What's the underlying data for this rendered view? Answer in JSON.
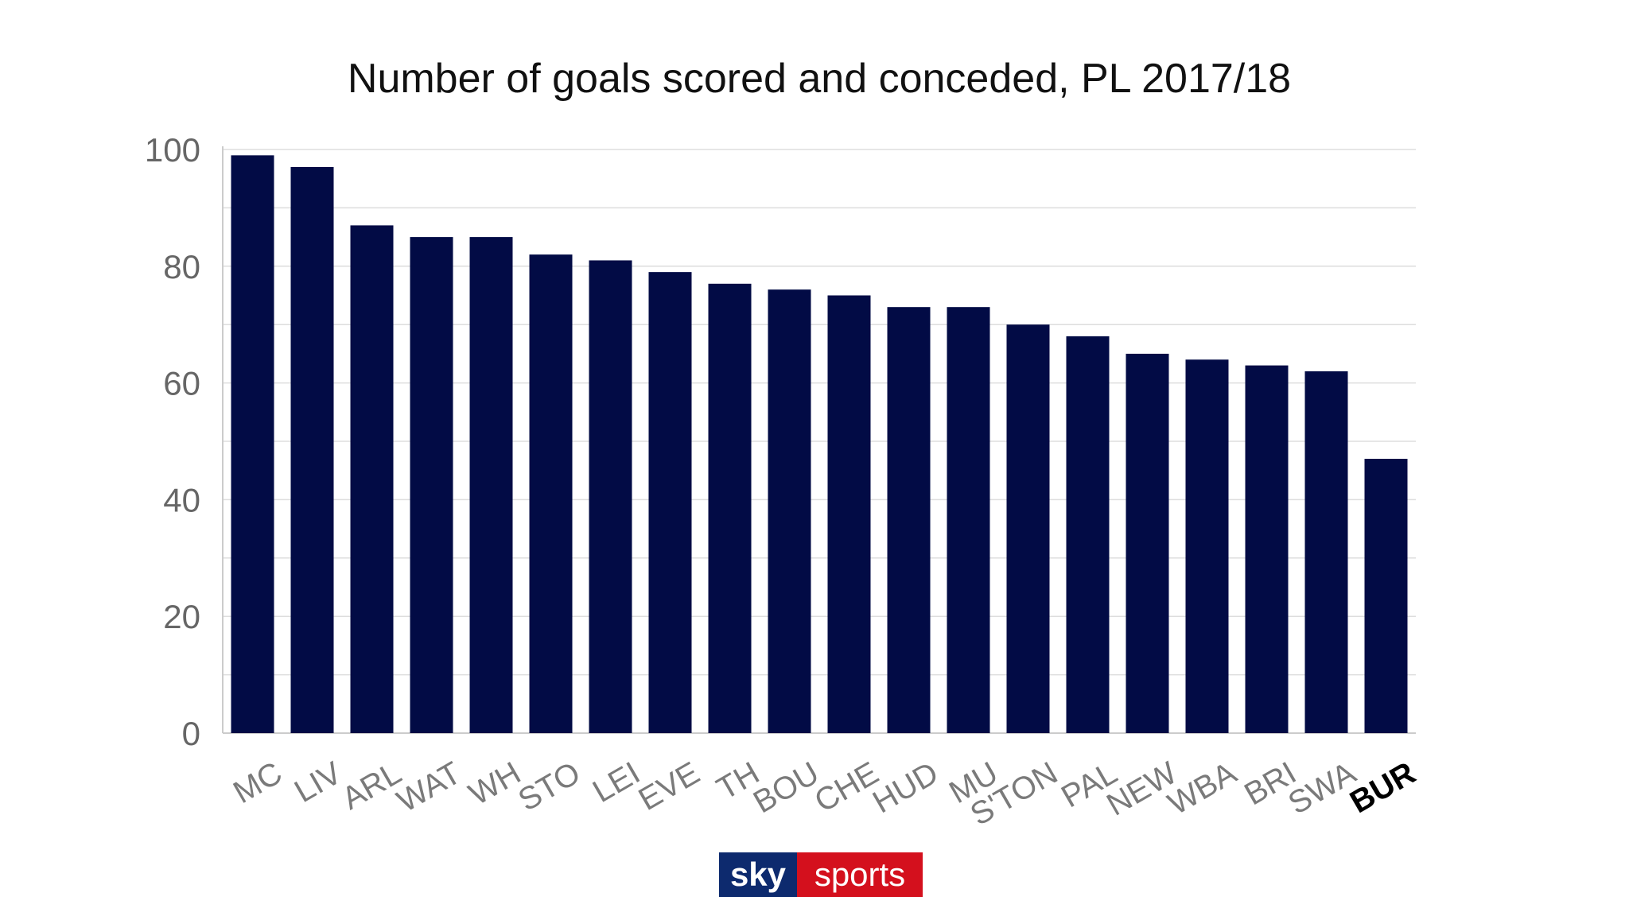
{
  "chart_data": {
    "type": "bar",
    "title": "Number of goals scored and conceded, PL 2017/18",
    "xlabel": "",
    "ylabel": "",
    "categories": [
      "MC",
      "LIV",
      "ARL",
      "WAT",
      "WH",
      "STO",
      "LEI",
      "EVE",
      "TH",
      "BOU",
      "CHE",
      "HUD",
      "MU",
      "S'TON",
      "PAL",
      "NEW",
      "WBA",
      "BRI",
      "SWA",
      "BUR"
    ],
    "values": [
      99,
      97,
      87,
      85,
      85,
      82,
      81,
      79,
      77,
      76,
      75,
      73,
      73,
      70,
      68,
      65,
      64,
      63,
      62,
      47
    ],
    "highlight": "BUR",
    "ylim": [
      0,
      100
    ],
    "yticks": [
      0,
      20,
      40,
      60,
      80,
      100
    ],
    "grid": true,
    "legend": "none",
    "colors": {
      "bar": "#020b45",
      "grid": "#dddddd",
      "axis": "#cccccc",
      "tick_text": "#666666",
      "category_text": "#7a7a7a",
      "highlight_text": "#000000"
    }
  },
  "logo": {
    "left_text": "sky",
    "right_text": "sports",
    "left_color": "#0d2a6e",
    "right_color": "#d4101d"
  }
}
